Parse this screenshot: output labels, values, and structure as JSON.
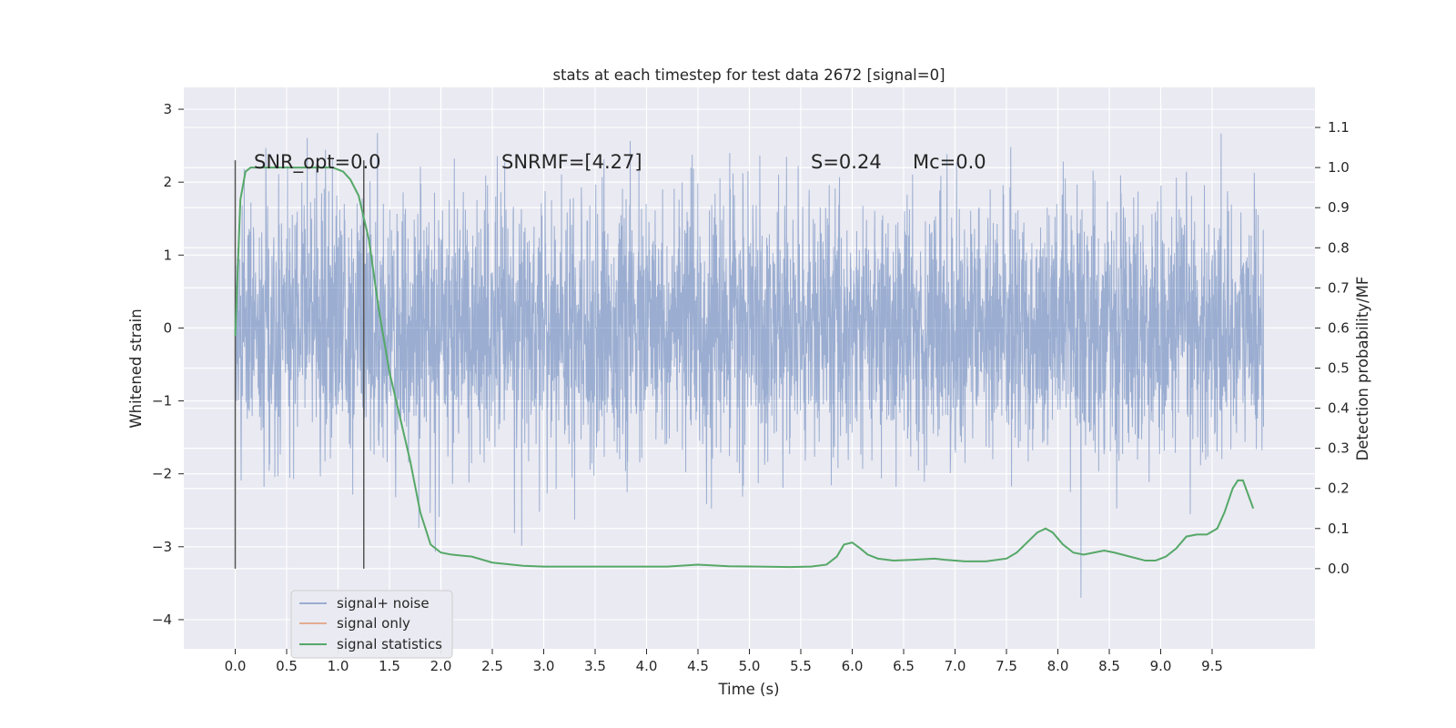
{
  "chart_data": {
    "type": "line",
    "title": "stats at each timestep for test data 2672 [signal=0]",
    "xlabel": "Time (s)",
    "ylabel": "Whitened strain",
    "y2label": "Detection probability/MF",
    "xlim": [
      -0.5,
      10.5
    ],
    "ylim": [
      -4.4,
      3.3
    ],
    "y2lim": [
      -0.2,
      1.2
    ],
    "xticks": [
      "0.0",
      "0.5",
      "1.0",
      "1.5",
      "2.0",
      "2.5",
      "3.0",
      "3.5",
      "4.0",
      "4.5",
      "5.0",
      "5.5",
      "6.0",
      "6.5",
      "7.0",
      "7.5",
      "8.0",
      "8.5",
      "9.0",
      "9.5"
    ],
    "xtick_values": [
      0,
      0.5,
      1,
      1.5,
      2,
      2.5,
      3,
      3.5,
      4,
      4.5,
      5,
      5.5,
      6,
      6.5,
      7,
      7.5,
      8,
      8.5,
      9,
      9.5
    ],
    "yticks": [
      "3",
      "2",
      "1",
      "0",
      "−1",
      "−2",
      "−3",
      "−4"
    ],
    "ytick_values": [
      3,
      2,
      1,
      0,
      -1,
      -2,
      -3,
      -4
    ],
    "y2ticks": [
      "1.1",
      "1.0",
      "0.9",
      "0.8",
      "0.7",
      "0.6",
      "0.5",
      "0.4",
      "0.3",
      "0.2",
      "0.1",
      "0.0"
    ],
    "y2tick_values": [
      1.1,
      1.0,
      0.9,
      0.8,
      0.7,
      0.6,
      0.5,
      0.4,
      0.3,
      0.2,
      0.1,
      0.0
    ],
    "grid": true,
    "legend_placement": "lower-left",
    "series": [
      {
        "name": "signal+ noise",
        "axis": "left",
        "color": "#4c72b0",
        "x_range": [
          0,
          10
        ],
        "description_level": "noise band approx ±1.8 with spikes up to ±3"
      },
      {
        "name": "signal only",
        "axis": "left",
        "color": "#dd8452",
        "x": [],
        "y": []
      },
      {
        "name": "signal statistics",
        "axis": "right",
        "color": "#55a868",
        "x": [
          0.0,
          0.05,
          0.1,
          0.15,
          0.25,
          0.4,
          0.6,
          0.8,
          0.95,
          1.05,
          1.12,
          1.2,
          1.3,
          1.4,
          1.5,
          1.6,
          1.7,
          1.8,
          1.9,
          2.0,
          2.1,
          2.3,
          2.5,
          2.8,
          3.0,
          3.3,
          3.6,
          3.9,
          4.2,
          4.5,
          4.8,
          5.1,
          5.4,
          5.6,
          5.75,
          5.85,
          5.92,
          6.0,
          6.08,
          6.15,
          6.25,
          6.4,
          6.6,
          6.8,
          6.9,
          7.1,
          7.3,
          7.5,
          7.6,
          7.7,
          7.8,
          7.88,
          7.95,
          8.05,
          8.15,
          8.25,
          8.35,
          8.45,
          8.55,
          8.7,
          8.85,
          8.95,
          9.05,
          9.15,
          9.25,
          9.35,
          9.45,
          9.55,
          9.62,
          9.7,
          9.75,
          9.8,
          9.9
        ],
        "y": [
          0.58,
          0.92,
          0.99,
          1.0,
          1.0,
          1.0,
          1.0,
          1.0,
          1.0,
          0.99,
          0.97,
          0.93,
          0.82,
          0.64,
          0.49,
          0.38,
          0.27,
          0.14,
          0.06,
          0.04,
          0.035,
          0.03,
          0.015,
          0.007,
          0.005,
          0.005,
          0.005,
          0.005,
          0.005,
          0.01,
          0.006,
          0.005,
          0.004,
          0.005,
          0.01,
          0.03,
          0.06,
          0.065,
          0.05,
          0.035,
          0.025,
          0.02,
          0.022,
          0.025,
          0.022,
          0.018,
          0.018,
          0.025,
          0.04,
          0.065,
          0.09,
          0.1,
          0.09,
          0.06,
          0.04,
          0.035,
          0.04,
          0.045,
          0.04,
          0.03,
          0.02,
          0.02,
          0.03,
          0.05,
          0.08,
          0.085,
          0.085,
          0.1,
          0.14,
          0.2,
          0.22,
          0.22,
          0.15
        ],
        "vlines_x": [
          0.0,
          1.25
        ],
        "vlines_y2": [
          0.0,
          1.0
        ]
      }
    ],
    "annotations": [
      {
        "text": "SNR_opt=0.0",
        "x": 0.2,
        "y2": 1.0
      },
      {
        "text": "SNRMF=[4.27]",
        "x": 2.6,
        "y2": 1.0
      },
      {
        "text": "S=0.24",
        "x": 5.6,
        "y2": 1.0
      },
      {
        "text": "Mc=0.0",
        "x": 6.6,
        "y2": 1.0
      }
    ]
  }
}
